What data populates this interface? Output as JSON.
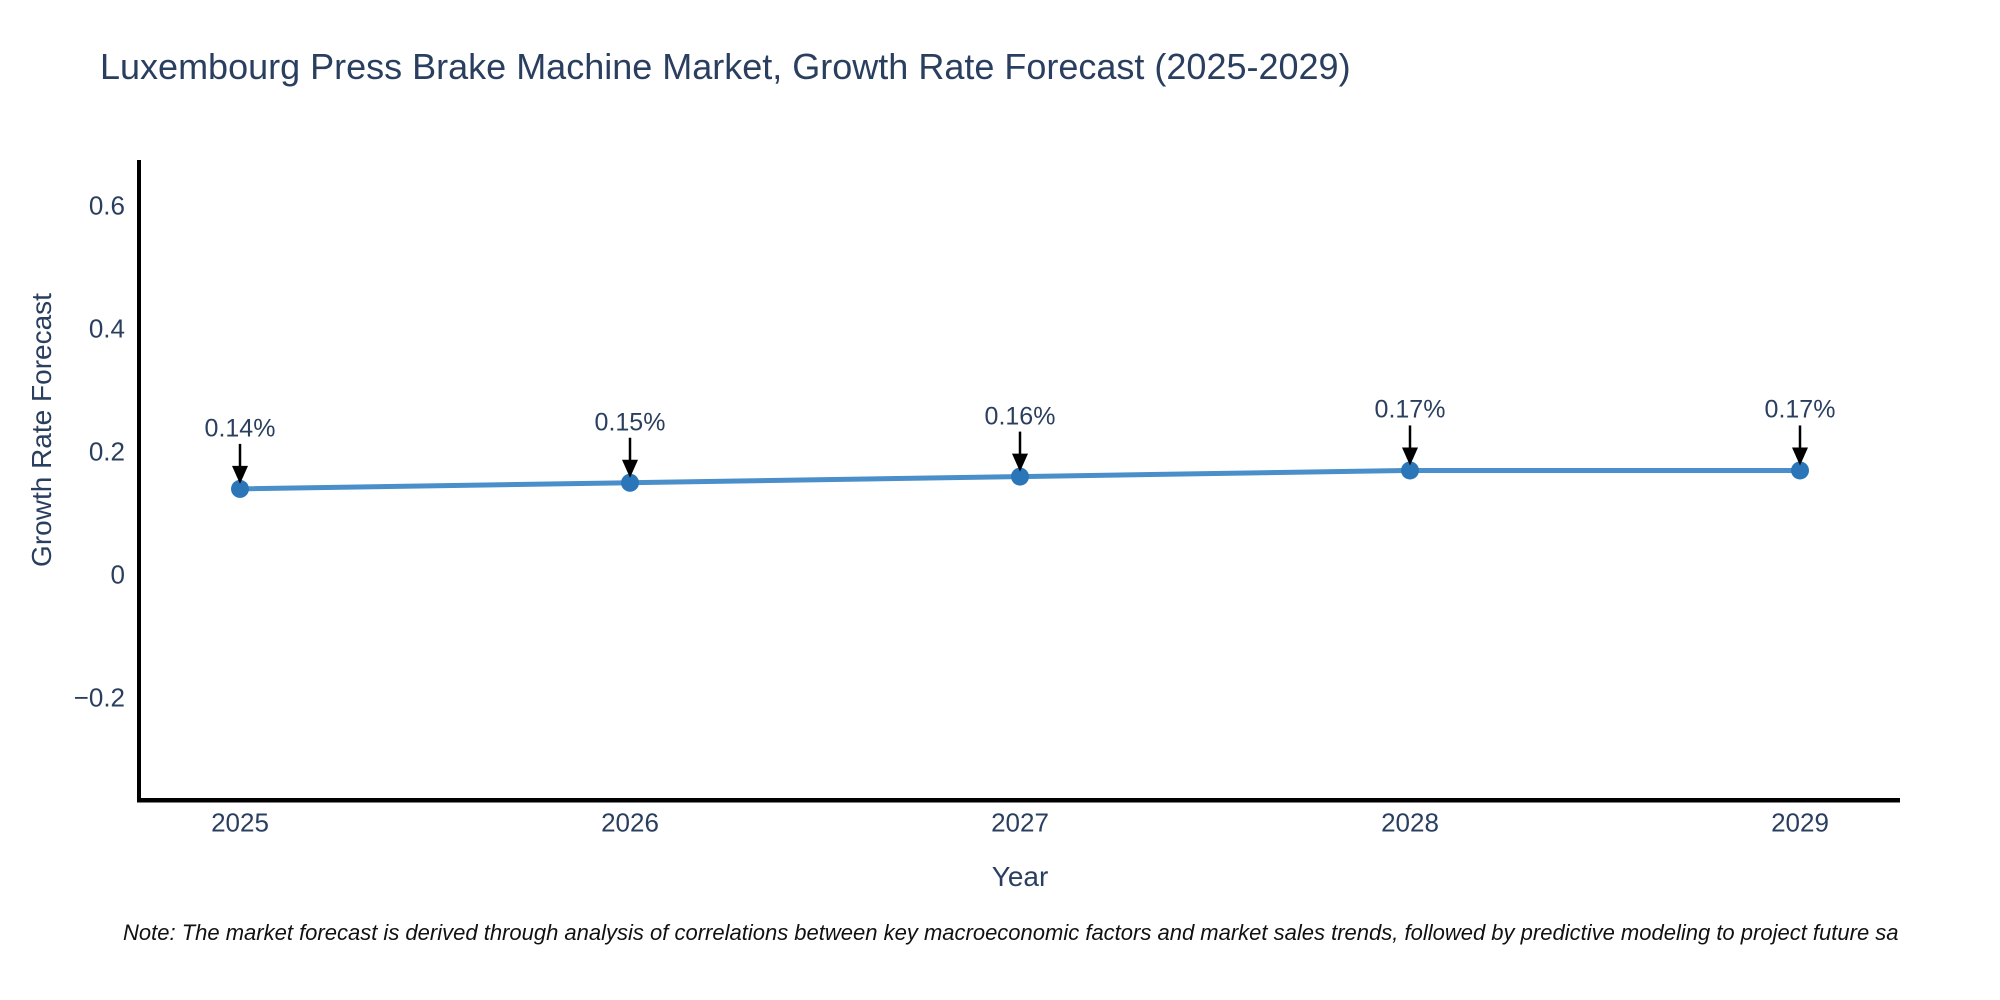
{
  "title": "Luxembourg Press Brake Machine Market, Growth Rate Forecast (2025-2029)",
  "note": "Note: The market forecast is derived through analysis of correlations between key macroeconomic factors and market sales trends, followed by predictive modeling to project future sa",
  "chart_data": {
    "type": "line",
    "title": "Luxembourg Press Brake Machine Market, Growth Rate Forecast (2025-2029)",
    "xlabel": "Year",
    "ylabel": "Growth Rate Forecast",
    "categories": [
      "2025",
      "2026",
      "2027",
      "2028",
      "2029"
    ],
    "series": [
      {
        "name": "Growth Rate Forecast",
        "values": [
          0.14,
          0.15,
          0.16,
          0.17,
          0.17
        ],
        "point_labels": [
          "0.14%",
          "0.15%",
          "0.16%",
          "0.17%",
          "0.17%"
        ]
      }
    ],
    "yticks": {
      "labels": [
        "0.6",
        "0.4",
        "0.2",
        "0",
        "−0.2"
      ],
      "values": [
        0.6,
        0.4,
        0.2,
        0,
        -0.2
      ]
    },
    "ylim": [
      -0.36,
      0.67
    ],
    "grid": false,
    "legend": "none",
    "annotation_style": "black down-arrow from label to marker",
    "colors": {
      "line": "#4a8fc9",
      "marker": "#2a76b8",
      "arrow": "#000000",
      "axis": "#000000",
      "text": "#2a3f5f",
      "note_text": "#111111"
    }
  }
}
